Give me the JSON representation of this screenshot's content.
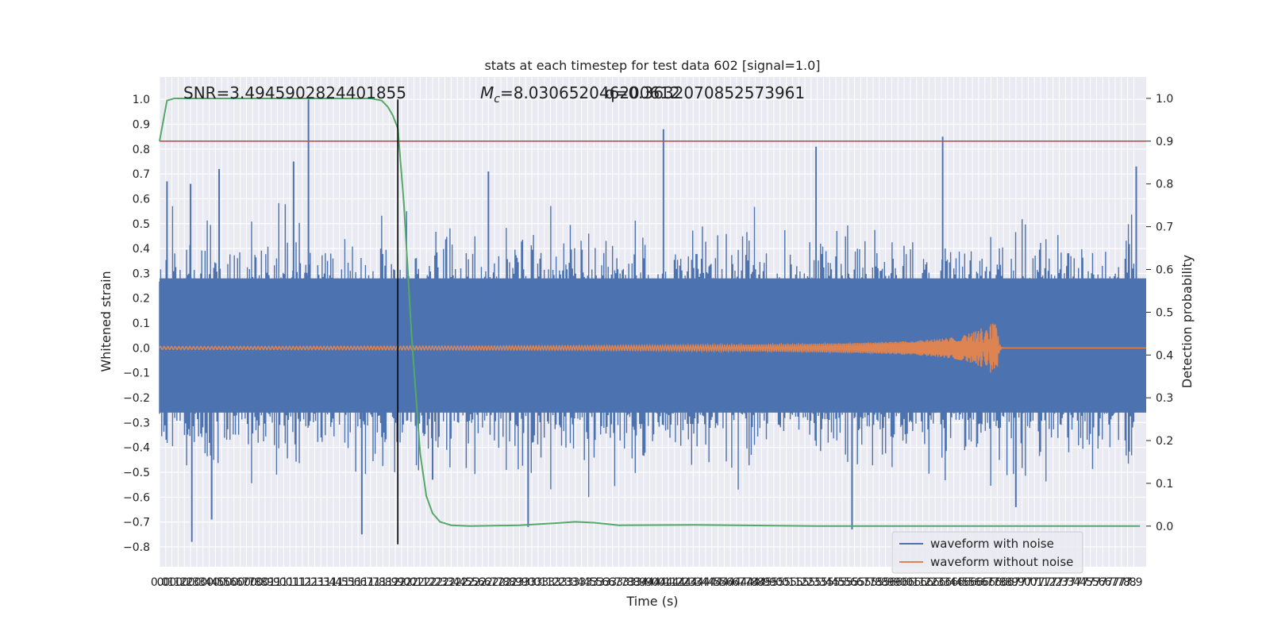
{
  "chart_data": {
    "type": "line",
    "title": "stats at each timestep for test data 602 [signal=1.0]",
    "xlabel": "Time (s)",
    "ylabel": "Whitened strain",
    "y2label": "Detection probability",
    "xlim": [
      0.0,
      7.95
    ],
    "ylim": [
      -0.88,
      1.09
    ],
    "y2lim": [
      -0.095,
      1.05
    ],
    "x_tick_labels": [
      "0.0",
      "0.1",
      "0.1",
      "0.2",
      "0.2",
      "0.3",
      "0.3",
      "0.4",
      "0.4",
      "0.5",
      "0.5",
      "0.6",
      "0.6",
      "0.7",
      "0.7",
      "0.8",
      "0.8",
      "0.9",
      "0.9",
      "1.0",
      "1.0",
      "1.1",
      "1.1",
      "1.2",
      "1.2",
      "1.3",
      "1.3",
      "1.4",
      "1.4",
      "1.5",
      "1.5",
      "1.6",
      "1.6",
      "1.7",
      "1.7",
      "1.8",
      "1.8",
      "1.9",
      "1.9",
      "2.0",
      "2.0",
      "2.1",
      "2.1",
      "2.2",
      "2.2",
      "2.3",
      "2.3",
      "2.4",
      "2.4",
      "2.5",
      "2.5",
      "2.6",
      "2.6",
      "2.7",
      "2.7",
      "2.8",
      "2.8",
      "2.9",
      "2.9",
      "3.0",
      "3.0",
      "3.1",
      "3.1",
      "3.2",
      "3.2",
      "3.3",
      "3.3",
      "3.4",
      "3.4",
      "3.5",
      "3.5",
      "3.6",
      "3.6",
      "3.7",
      "3.7",
      "3.8",
      "3.8",
      "3.9",
      "3.9",
      "4.0",
      "4.0",
      "4.1",
      "4.1",
      "4.2",
      "4.2",
      "4.3",
      "4.3",
      "4.4",
      "4.4",
      "4.5",
      "4.5",
      "4.6",
      "4.6",
      "4.7",
      "4.7",
      "4.8",
      "4.8",
      "4.9",
      "4.9",
      "5.0",
      "5.0",
      "5.1",
      "5.1",
      "5.2",
      "5.2",
      "5.3",
      "5.3",
      "5.4",
      "5.4",
      "5.5",
      "5.5",
      "5.6",
      "5.6",
      "5.7",
      "5.7",
      "5.8",
      "5.8",
      "5.9",
      "5.9",
      "6.0",
      "6.0",
      "6.1",
      "6.1",
      "6.2",
      "6.2",
      "6.3",
      "6.3",
      "6.4",
      "6.4",
      "6.5",
      "6.5",
      "6.6",
      "6.6",
      "6.7",
      "6.7",
      "6.8",
      "6.8",
      "6.9",
      "6.9",
      "7.0",
      "7.0",
      "7.1",
      "7.1",
      "7.2",
      "7.2",
      "7.3",
      "7.3",
      "7.4",
      "7.4",
      "7.5",
      "7.5",
      "7.6",
      "7.6",
      "7.7",
      "7.7",
      "7.8",
      "7.8",
      "7.9"
    ],
    "y_ticks": [
      -0.8,
      -0.7,
      -0.6,
      -0.5,
      -0.4,
      -0.3,
      -0.2,
      -0.1,
      0.0,
      0.1,
      0.2,
      0.3,
      0.4,
      0.5,
      0.6,
      0.7,
      0.8,
      0.9,
      1.0
    ],
    "y_tick_labels": [
      "−0.8",
      "−0.7",
      "−0.6",
      "−0.5",
      "−0.4",
      "−0.3",
      "−0.2",
      "−0.1",
      "0.0",
      "0.1",
      "0.2",
      "0.3",
      "0.4",
      "0.5",
      "0.6",
      "0.7",
      "0.8",
      "0.9",
      "1.0"
    ],
    "y2_ticks": [
      0.0,
      0.1,
      0.2,
      0.3,
      0.4,
      0.5,
      0.6,
      0.7,
      0.8,
      0.9,
      1.0
    ],
    "y2_tick_labels": [
      "0.0",
      "0.1",
      "0.2",
      "0.3",
      "0.4",
      "0.5",
      "0.6",
      "0.7",
      "0.8",
      "0.9",
      "1.0"
    ],
    "grid": true,
    "legend_placement": "lower-right",
    "annotations": {
      "snr": "SNR=3.4945902824401855",
      "mc_prefix": "M",
      "mc_sub": "c",
      "mc_value": "=8.030652046200612",
      "q_value": "q=0.3632070852573961"
    },
    "threshold_line": {
      "y2": 0.9,
      "color": "#c44e52"
    },
    "vertical_marker": {
      "x": 1.92,
      "color": "#000000"
    },
    "noise_series": {
      "name": "waveform with noise",
      "color": "#4c72b0",
      "description_sample_points": 900,
      "typical_amplitude": 0.35,
      "peaks": [
        {
          "x": 0.06,
          "y": 0.67
        },
        {
          "x": 0.25,
          "y": 0.66
        },
        {
          "x": 0.48,
          "y": 0.72
        },
        {
          "x": 1.08,
          "y": 0.75
        },
        {
          "x": 1.2,
          "y": 1.0
        },
        {
          "x": 2.65,
          "y": 0.71
        },
        {
          "x": 4.06,
          "y": 0.88
        },
        {
          "x": 5.29,
          "y": 0.81
        },
        {
          "x": 6.31,
          "y": 0.85
        },
        {
          "x": 7.87,
          "y": 0.73
        },
        {
          "x": 0.26,
          "y": -0.78
        },
        {
          "x": 0.42,
          "y": -0.69
        },
        {
          "x": 1.63,
          "y": -0.75
        },
        {
          "x": 2.97,
          "y": -0.72
        },
        {
          "x": 5.58,
          "y": -0.73
        },
        {
          "x": 6.9,
          "y": -0.64
        },
        {
          "x": 2.2,
          "y": -0.53
        }
      ]
    },
    "clean_series": {
      "name": "waveform without noise",
      "color": "#dd8452",
      "merger_x": 6.75,
      "peak_amplitude": 0.1,
      "base_amplitude": 0.006
    },
    "probability_series": {
      "color": "#55a868",
      "points": [
        {
          "x": 0.0,
          "y": 0.9
        },
        {
          "x": 0.06,
          "y": 0.995
        },
        {
          "x": 0.12,
          "y": 1.0
        },
        {
          "x": 1.7,
          "y": 1.0
        },
        {
          "x": 1.79,
          "y": 0.995
        },
        {
          "x": 1.84,
          "y": 0.98
        },
        {
          "x": 1.88,
          "y": 0.96
        },
        {
          "x": 1.92,
          "y": 0.93
        },
        {
          "x": 1.97,
          "y": 0.75
        },
        {
          "x": 2.03,
          "y": 0.45
        },
        {
          "x": 2.1,
          "y": 0.17
        },
        {
          "x": 2.15,
          "y": 0.07
        },
        {
          "x": 2.2,
          "y": 0.03
        },
        {
          "x": 2.26,
          "y": 0.01
        },
        {
          "x": 2.35,
          "y": 0.002
        },
        {
          "x": 2.5,
          "y": 0.0
        },
        {
          "x": 2.9,
          "y": 0.002
        },
        {
          "x": 3.2,
          "y": 0.007
        },
        {
          "x": 3.35,
          "y": 0.01
        },
        {
          "x": 3.5,
          "y": 0.008
        },
        {
          "x": 3.7,
          "y": 0.002
        },
        {
          "x": 4.3,
          "y": 0.003
        },
        {
          "x": 5.3,
          "y": 0.0
        },
        {
          "x": 6.8,
          "y": 0.0
        },
        {
          "x": 7.9,
          "y": 0.0
        }
      ]
    }
  }
}
